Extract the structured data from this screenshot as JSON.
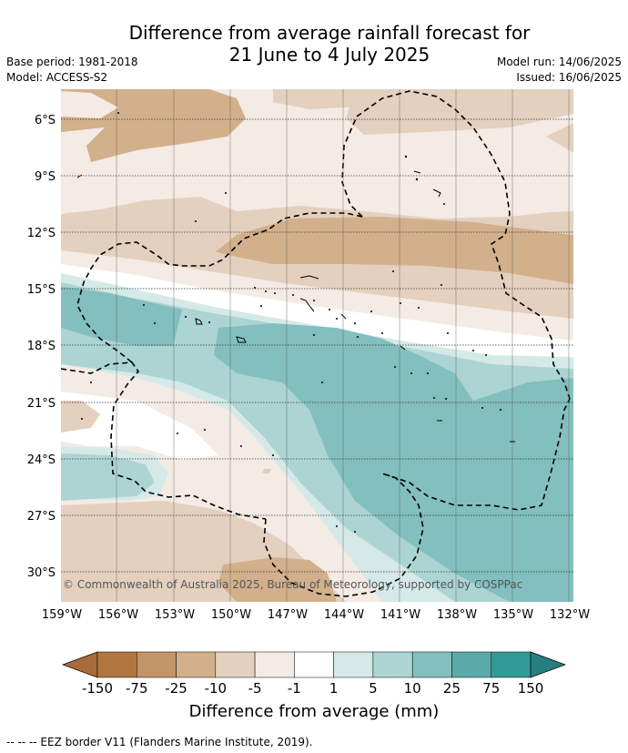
{
  "title_line1": "Difference from average rainfall forecast for",
  "title_line2": "21 June to 4 July 2025",
  "base_period": "Base period: 1981-2018",
  "model": "Model: ACCESS-S2",
  "model_run": "Model run: 14/06/2025",
  "issued": "Issued: 16/06/2025",
  "copyright": "© Commonwealth of Australia 2025, Bureau of Meteorology, supported by COSPPac",
  "lat_labels": [
    "6°S",
    "9°S",
    "12°S",
    "15°S",
    "18°S",
    "21°S",
    "24°S",
    "27°S",
    "30°S"
  ],
  "lon_labels": [
    "159°W",
    "156°W",
    "153°W",
    "150°W",
    "147°W",
    "144°W",
    "141°W",
    "138°W",
    "135°W",
    "132°W"
  ],
  "colorbar": {
    "ticks": [
      "-150",
      "-75",
      "-25",
      "-10",
      "-5",
      "-1",
      "1",
      "5",
      "10",
      "25",
      "75",
      "150"
    ],
    "colors": [
      "#a86b3a",
      "#b07640",
      "#c29467",
      "#d2b08c",
      "#e4d0bf",
      "#f4ebe5",
      "#ffffff",
      "#d5e9e8",
      "#acd4d3",
      "#82bfbe",
      "#5aaaa9",
      "#319a96",
      "#267f7c"
    ],
    "label": "Difference from average (mm)"
  },
  "legend_note": "-- -- -- EEZ border V11 (Flanders Marine Institute, 2019)."
}
